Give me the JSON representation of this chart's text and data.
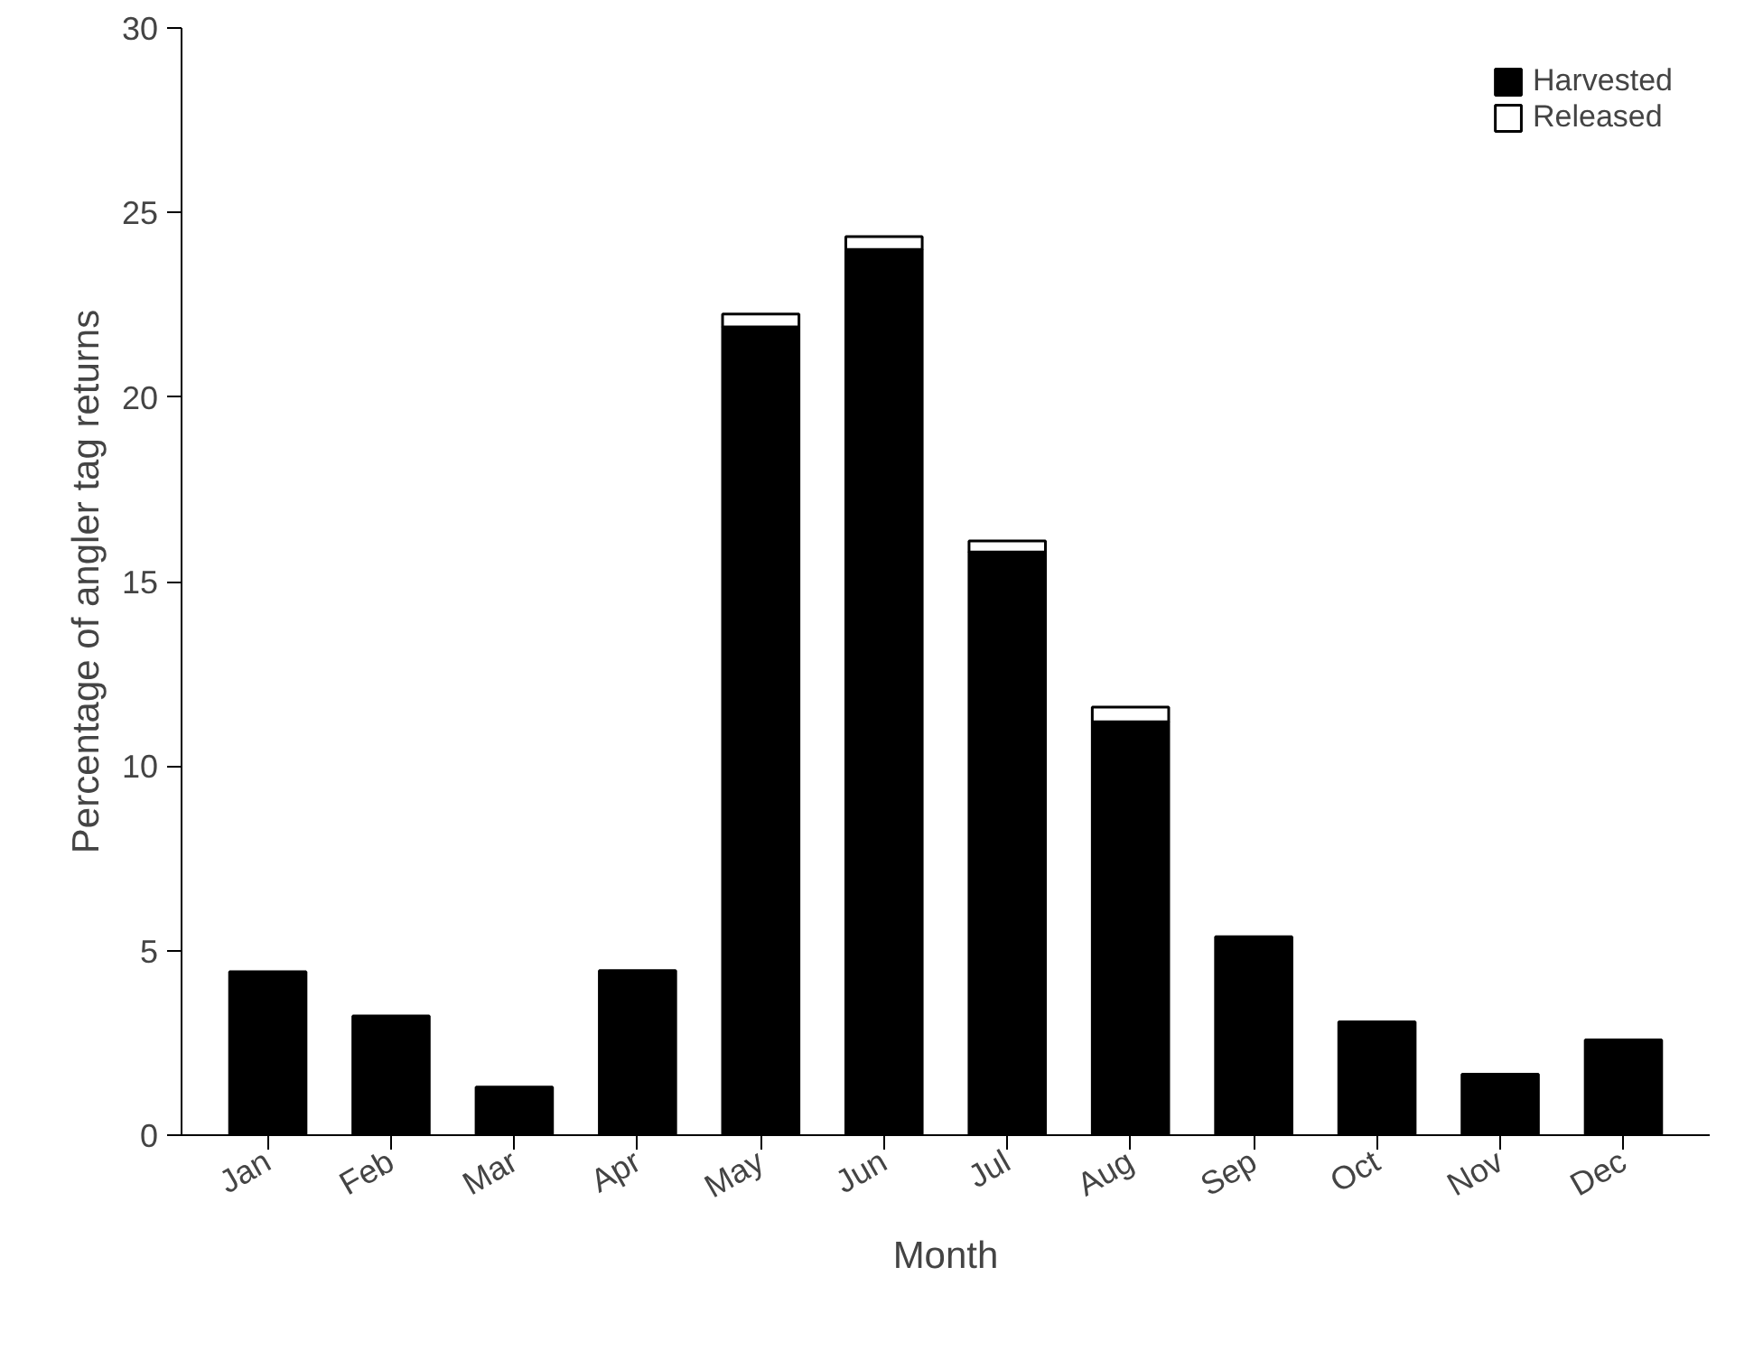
{
  "chart_data": {
    "type": "bar",
    "stacked": true,
    "xlabel": "Month",
    "ylabel": "Percentage of angler tag returns",
    "categories": [
      "Jan",
      "Feb",
      "Mar",
      "Apr",
      "May",
      "Jun",
      "Jul",
      "Aug",
      "Sep",
      "Oct",
      "Nov",
      "Dec"
    ],
    "series": [
      {
        "name": "Harvested",
        "color": "#000000",
        "values": [
          4.43,
          3.23,
          1.3,
          4.46,
          21.9,
          24.0,
          15.8,
          11.2,
          5.38,
          3.07,
          1.65,
          2.58
        ]
      },
      {
        "name": "Released",
        "color": "#ffffff",
        "values": [
          0,
          0,
          0,
          0,
          0.35,
          0.35,
          0.3,
          0.4,
          0,
          0,
          0,
          0
        ]
      }
    ],
    "ylim": [
      0,
      30
    ],
    "yticks": [
      0,
      5,
      10,
      15,
      20,
      25,
      30
    ],
    "grid": false,
    "legend": "top right"
  }
}
